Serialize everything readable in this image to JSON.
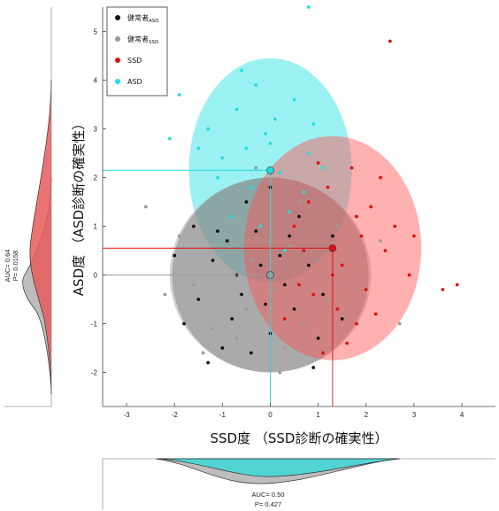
{
  "chart_data": {
    "type": "scatter",
    "xlabel": "SSD度 （SSD診断の確実性）",
    "ylabel": "ASD度 （ASD診断の確実性）",
    "xlim": [
      -3.5,
      4.7
    ],
    "ylim": [
      -2.7,
      5.5
    ],
    "xticks": [
      -3,
      -2,
      -1,
      0,
      1,
      2,
      3,
      4
    ],
    "yticks": [
      -2,
      -1,
      0,
      1,
      2,
      3,
      4,
      5
    ],
    "grid": false,
    "legend_position": "top-left",
    "legend": [
      {
        "base": "健常者",
        "sub": "ASD",
        "color": "#111111"
      },
      {
        "base": "健常者",
        "sub": "SSD",
        "color": "#9a9a9a"
      },
      {
        "base": "SSD",
        "sub": "",
        "color": "#e01010"
      },
      {
        "base": "ASD",
        "sub": "",
        "color": "#22dede"
      }
    ],
    "series": [
      {
        "name": "健常者ASD",
        "color": "#111111",
        "centroid": [
          0.0,
          0.0
        ],
        "ellipse": {
          "rx": 2.05,
          "ry": 2.0
        },
        "points": [
          [
            -1.8,
            -1.0
          ],
          [
            -1.5,
            -0.5
          ],
          [
            -1.2,
            0.3
          ],
          [
            -0.9,
            0.7
          ],
          [
            -0.6,
            -0.4
          ],
          [
            -0.3,
            0.9
          ],
          [
            0.0,
            -1.2
          ],
          [
            0.2,
            0.4
          ],
          [
            0.5,
            -0.7
          ],
          [
            0.8,
            0.2
          ],
          [
            1.0,
            -1.3
          ],
          [
            1.3,
            0.8
          ],
          [
            -0.4,
            -1.6
          ],
          [
            -1.0,
            -1.5
          ],
          [
            0.6,
            1.2
          ],
          [
            -0.2,
            0.2
          ],
          [
            -1.6,
            1.0
          ],
          [
            -0.8,
            -0.9
          ],
          [
            0.3,
            -0.2
          ],
          [
            1.1,
            -0.4
          ],
          [
            -0.5,
            1.5
          ],
          [
            0.0,
            1.8
          ],
          [
            -1.3,
            -1.8
          ],
          [
            0.9,
            -1.9
          ],
          [
            -2.0,
            0.4
          ],
          [
            -0.7,
            0.0
          ],
          [
            0.4,
            0.8
          ],
          [
            1.5,
            -0.9
          ],
          [
            -0.1,
            -0.6
          ],
          [
            -1.1,
            0.9
          ]
        ]
      },
      {
        "name": "健常者SSD",
        "color": "#9a9a9a",
        "centroid": [
          0.0,
          0.0
        ],
        "ellipse": {
          "rx": 2.1,
          "ry": 2.0
        },
        "points": [
          [
            -1.6,
            -0.2
          ],
          [
            -1.2,
            -1.1
          ],
          [
            -0.8,
            0.4
          ],
          [
            -0.5,
            -0.7
          ],
          [
            -0.2,
            1.0
          ],
          [
            0.1,
            -0.3
          ],
          [
            0.4,
            0.6
          ],
          [
            0.7,
            -1.0
          ],
          [
            1.0,
            0.3
          ],
          [
            -1.9,
            0.8
          ],
          [
            -0.9,
            1.3
          ],
          [
            0.3,
            -1.5
          ],
          [
            1.2,
            -0.5
          ],
          [
            -0.4,
            0.3
          ],
          [
            0.6,
            1.5
          ],
          [
            -1.4,
            -1.6
          ],
          [
            0.0,
            0.7
          ],
          [
            -0.7,
            -1.3
          ],
          [
            1.4,
            1.0
          ],
          [
            -2.2,
            -0.4
          ],
          [
            2.3,
            0.7
          ],
          [
            2.7,
            -1.0
          ],
          [
            -2.6,
            1.4
          ],
          [
            0.2,
            -2.0
          ],
          [
            -0.3,
            2.2
          ]
        ]
      },
      {
        "name": "SSD",
        "color": "#e01010",
        "centroid": [
          1.3,
          0.55
        ],
        "ellipse": {
          "rx": 1.85,
          "ry": 2.3
        },
        "points": [
          [
            0.5,
            1.0
          ],
          [
            0.9,
            -0.4
          ],
          [
            1.2,
            1.8
          ],
          [
            1.5,
            0.2
          ],
          [
            1.8,
            -1.0
          ],
          [
            2.1,
            1.4
          ],
          [
            2.4,
            0.5
          ],
          [
            1.0,
            2.3
          ],
          [
            1.4,
            -0.7
          ],
          [
            0.7,
            0.5
          ],
          [
            2.0,
            -0.3
          ],
          [
            1.7,
            2.2
          ],
          [
            2.6,
            1.0
          ],
          [
            0.3,
            -0.9
          ],
          [
            1.1,
            -1.6
          ],
          [
            2.9,
            0.0
          ],
          [
            1.9,
            0.8
          ],
          [
            0.8,
            1.5
          ],
          [
            2.3,
            2.0
          ],
          [
            1.6,
            -1.4
          ],
          [
            3.0,
            0.8
          ],
          [
            3.6,
            -0.3
          ],
          [
            3.9,
            -0.2
          ],
          [
            2.5,
            4.8
          ],
          [
            1.3,
            0.0
          ],
          [
            0.6,
            -0.2
          ],
          [
            2.2,
            -0.8
          ],
          [
            1.8,
            1.2
          ]
        ]
      },
      {
        "name": "ASD",
        "color": "#22dede",
        "centroid": [
          0.0,
          2.15
        ],
        "ellipse": {
          "rx": 1.7,
          "ry": 2.3
        },
        "points": [
          [
            -1.3,
            3.0
          ],
          [
            -1.0,
            2.4
          ],
          [
            -0.7,
            3.4
          ],
          [
            -0.4,
            1.8
          ],
          [
            -0.1,
            2.9
          ],
          [
            0.2,
            2.1
          ],
          [
            0.5,
            3.6
          ],
          [
            0.8,
            2.5
          ],
          [
            -0.8,
            1.2
          ],
          [
            -0.3,
            3.9
          ],
          [
            0.4,
            1.3
          ],
          [
            -1.1,
            2.0
          ],
          [
            0.1,
            3.2
          ],
          [
            -0.5,
            2.6
          ],
          [
            0.7,
            1.7
          ],
          [
            -1.5,
            2.6
          ],
          [
            0.9,
            3.1
          ],
          [
            0.3,
            0.5
          ],
          [
            -0.6,
            4.2
          ],
          [
            1.1,
            2.2
          ],
          [
            -1.9,
            3.7
          ],
          [
            -2.1,
            2.8
          ],
          [
            0.8,
            5.5
          ],
          [
            -0.2,
            1.0
          ],
          [
            0.0,
            2.7
          ]
        ]
      }
    ],
    "top_annotation": {
      "label": "AUC= 0.50",
      "p": "P= 0.427"
    },
    "left_annotation": {
      "label": "AUC= 0.64",
      "p": "P= 0.0158"
    }
  }
}
